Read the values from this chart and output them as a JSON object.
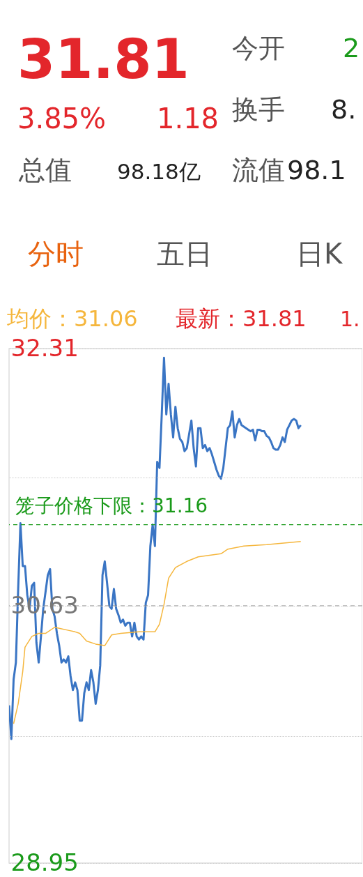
{
  "chart_data": {
    "type": "line",
    "annotations": [
      "31.81",
      "3.85%",
      "1.18",
      "总值",
      "98.18亿",
      "今开",
      "2",
      "换手",
      "8.",
      "流值",
      "98.1",
      "分时",
      "五日",
      "日K",
      "均价：31.06",
      "最新：31.81",
      "1."
    ],
    "categories": [
      null,
      null,
      null,
      null,
      null,
      null,
      null,
      null,
      null,
      null,
      null,
      null,
      null,
      null,
      null,
      null,
      null,
      null,
      null,
      null,
      null,
      null,
      null,
      null,
      null,
      null,
      null,
      null,
      null,
      null,
      null,
      null,
      null,
      null,
      null,
      null,
      null,
      null,
      null,
      null,
      null,
      null,
      null,
      null,
      null,
      null,
      null,
      null,
      null,
      null,
      null,
      null,
      null,
      null,
      null,
      null,
      null,
      null,
      null,
      null,
      null,
      null,
      null,
      null,
      null,
      null,
      null,
      null,
      null,
      null,
      null,
      null,
      null,
      null,
      null,
      null,
      null,
      null,
      null,
      null,
      null,
      null,
      null,
      null,
      null,
      null,
      null,
      null,
      null,
      null,
      null,
      null,
      null,
      null,
      null,
      null,
      null,
      null,
      null,
      null,
      null,
      null,
      null,
      null,
      null,
      null,
      null,
      null,
      null,
      null,
      null,
      null,
      null,
      null,
      null,
      null,
      null,
      null,
      null,
      null,
      null,
      null,
      null,
      null,
      null,
      null,
      null,
      null,
      null,
      null,
      null,
      null,
      null,
      null,
      null,
      null,
      null,
      null,
      null,
      null,
      null,
      null,
      null,
      null,
      null,
      null,
      null,
      null,
      null,
      null,
      null,
      null,
      null,
      null,
      null,
      null
    ],
    "series": [
      {
        "color": "#3a75c4",
        "values": [
          29.98,
          29.76,
          30.15,
          30.26,
          30.74,
          31.17,
          30.89,
          30.89,
          30.7,
          30.61,
          30.76,
          30.78,
          30.39,
          30.26,
          30.43,
          30.61,
          30.72,
          30.83,
          30.87,
          30.61,
          30.56,
          30.45,
          30.37,
          30.26,
          30.28,
          30.26,
          30.3,
          30.17,
          30.08,
          30.13,
          30.08,
          29.88,
          29.88,
          30.06,
          30.13,
          30.08,
          30.21,
          30.13,
          29.99,
          30.08,
          30.24,
          30.83,
          30.92,
          30.78,
          30.63,
          30.61,
          30.74,
          30.61,
          30.57,
          30.52,
          30.54,
          30.5,
          30.52,
          30.52,
          30.43,
          30.52,
          30.43,
          30.41,
          30.43,
          30.41,
          30.65,
          30.7,
          31.02,
          31.16,
          31.02,
          31.57,
          31.53,
          31.88,
          32.25,
          31.88,
          32.08,
          31.88,
          31.73,
          31.93,
          31.79,
          31.72,
          31.7,
          31.64,
          31.66,
          31.75,
          31.84,
          31.66,
          31.54,
          31.79,
          31.79,
          31.66,
          31.68,
          31.64,
          31.66,
          31.62,
          31.57,
          31.52,
          31.48,
          31.46,
          31.53,
          31.66,
          31.79,
          31.81,
          31.9,
          31.73,
          31.81,
          31.85,
          31.81,
          31.8,
          31.79,
          31.78,
          31.77,
          31.78,
          31.71,
          31.78,
          31.78,
          31.77,
          31.77,
          31.74,
          31.73,
          31.7,
          31.66,
          31.65,
          31.65,
          31.68,
          31.73,
          31.7,
          31.78,
          31.81,
          31.84,
          31.85,
          31.84,
          31.79,
          31.81,
          null,
          null,
          null,
          null,
          null,
          null,
          null,
          null,
          null,
          null,
          null,
          null,
          null,
          null,
          null,
          null,
          null,
          null,
          null,
          null,
          null,
          null,
          null,
          null,
          null,
          null,
          null
        ]
      },
      {
        "color": "#f5b63c",
        "values": [
          null,
          null,
          29.86,
          null,
          29.99,
          null,
          30.2,
          30.36,
          null,
          null,
          30.43,
          null,
          null,
          30.45,
          null,
          null,
          30.45,
          null,
          null,
          null,
          30.49,
          null,
          null,
          30.48,
          null,
          null,
          30.47,
          null,
          null,
          30.46,
          null,
          30.45,
          null,
          null,
          30.4,
          null,
          null,
          null,
          30.38,
          null,
          null,
          null,
          30.37,
          null,
          null,
          30.44,
          null,
          null,
          null,
          30.45,
          null,
          null,
          null,
          null,
          null,
          null,
          null,
          30.46,
          null,
          null,
          null,
          null,
          null,
          null,
          30.46,
          null,
          30.51,
          null,
          30.64,
          null,
          30.81,
          null,
          null,
          30.88,
          null,
          null,
          null,
          null,
          30.92,
          null,
          null,
          null,
          null,
          30.95,
          null,
          null,
          null,
          null,
          30.96,
          null,
          null,
          null,
          null,
          30.97,
          null,
          null,
          31.0,
          null,
          null,
          null,
          null,
          null,
          null,
          31.02,
          null,
          null,
          null,
          null,
          null,
          null,
          null,
          null,
          null,
          31.03,
          null,
          null,
          null,
          null,
          null,
          null,
          null,
          null,
          null,
          null,
          null,
          null,
          null,
          null,
          31.05,
          null,
          null,
          null,
          null,
          null,
          null,
          null,
          null,
          null,
          null,
          null,
          null,
          null,
          null,
          null,
          null,
          null,
          null,
          null,
          null,
          null,
          null,
          null,
          null,
          null,
          null,
          null
        ]
      }
    ],
    "ylim": [
      28.95,
      32.31
    ],
    "yticks": [
      28.95,
      {
        "value": 29.78,
        "label": null
      },
      30.63,
      {
        "value": 31.47,
        "label": null
      },
      32.31
    ],
    "tick_labels": "y",
    "grid": "y",
    "marker": "none",
    "line_style": "solid",
    "ref_lines": [
      {
        "axis": "y",
        "value": 31.16,
        "label": "笼子价格下限：31.16",
        "color": "#1a9a1a",
        "line_style": "dashed"
      },
      {
        "axis": "y",
        "value": 30.63,
        "label": null,
        "color": "#888888",
        "line_style": "dashed"
      }
    ]
  }
}
